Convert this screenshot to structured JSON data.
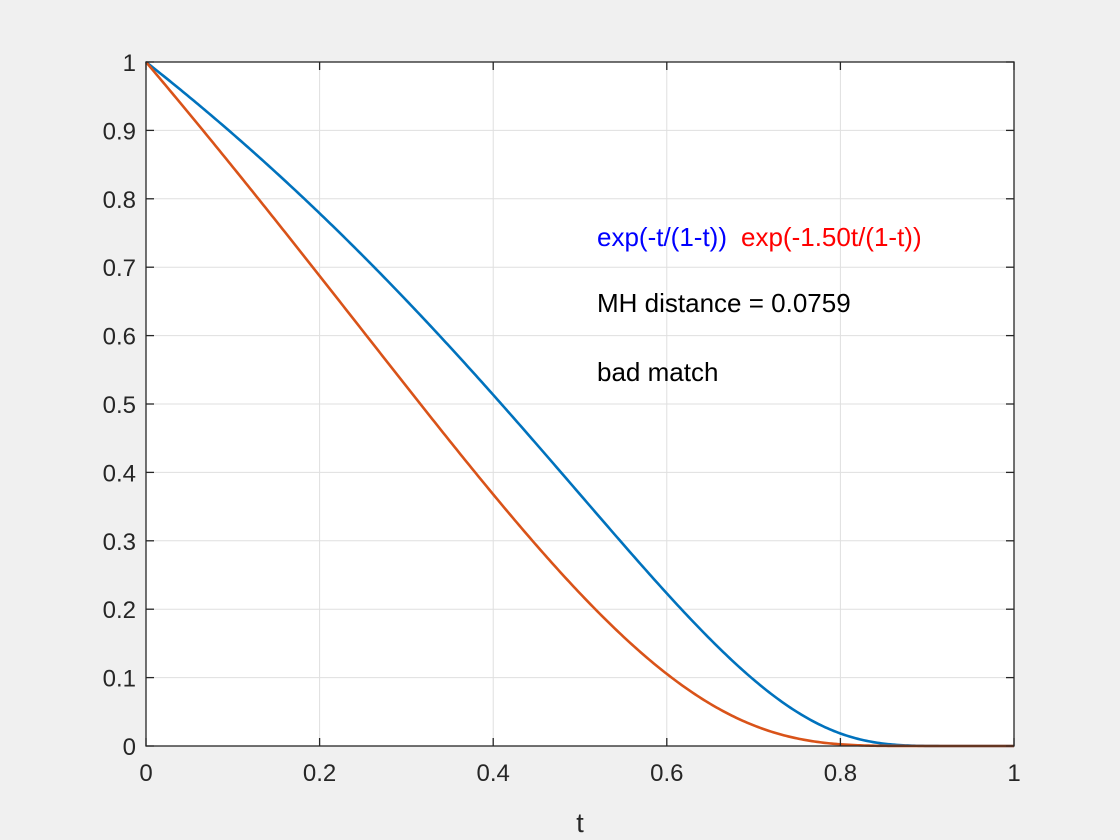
{
  "chart_data": {
    "type": "line",
    "title": "",
    "xlabel": "t",
    "ylabel": "",
    "xlim": [
      0,
      1
    ],
    "ylim": [
      0,
      1
    ],
    "grid": true,
    "x_ticks": [
      "0",
      "0.2",
      "0.4",
      "0.6",
      "0.8",
      "1"
    ],
    "y_ticks": [
      "0",
      "0.1",
      "0.2",
      "0.3",
      "0.4",
      "0.5",
      "0.6",
      "0.7",
      "0.8",
      "0.9",
      "1"
    ],
    "series": [
      {
        "name": "exp(-t/(1-t))",
        "color": "#0072BD",
        "k": 1.0,
        "x": [
          0,
          0.1,
          0.2,
          0.3,
          0.4,
          0.5,
          0.6,
          0.7,
          0.8,
          0.9,
          1.0
        ],
        "values": [
          1.0,
          0.895,
          0.779,
          0.651,
          0.513,
          0.368,
          0.223,
          0.097,
          0.018,
          0.0001,
          0
        ]
      },
      {
        "name": "exp(-1.50t/(1-t))",
        "color": "#D95319",
        "k": 1.5,
        "x": [
          0,
          0.1,
          0.2,
          0.3,
          0.4,
          0.5,
          0.6,
          0.7,
          0.8,
          0.9,
          1.0
        ],
        "values": [
          1.0,
          0.846,
          0.687,
          0.526,
          0.368,
          0.223,
          0.105,
          0.03,
          0.0025,
          0.0,
          0
        ]
      }
    ],
    "annotations": [
      {
        "text": "exp(-t/(1-t))",
        "color": "#0000FF"
      },
      {
        "text": "exp(-1.50t/(1-t))",
        "color": "#FF0000"
      },
      {
        "text": "MH distance = 0.0759",
        "color": "#000000"
      },
      {
        "text": "bad match",
        "color": "#000000"
      }
    ]
  }
}
